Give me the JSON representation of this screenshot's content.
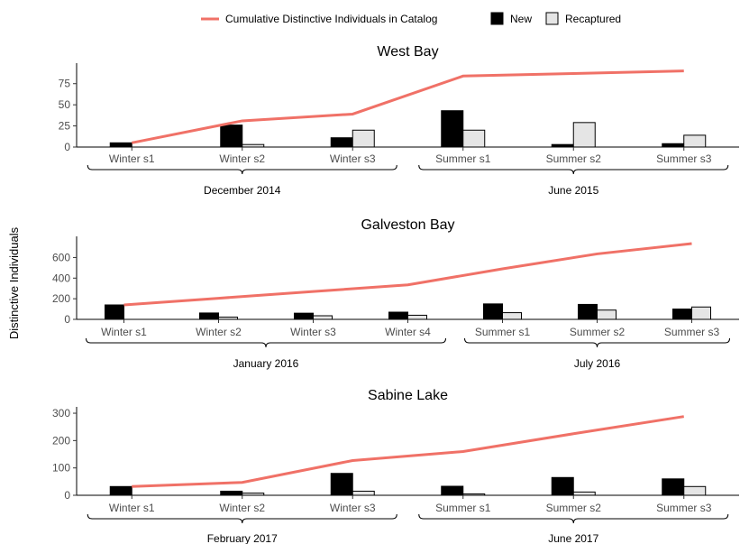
{
  "colors": {
    "cumulative": "#f07167",
    "new": "#000000",
    "recaptured": "#e5e5e5",
    "bar_stroke": "#000000",
    "axis": "#000000"
  },
  "legend": {
    "line_label": "Cumulative Distinctive Individuals in Catalog",
    "new_label": "New",
    "recaptured_label": "Recaptured",
    "placement": "top"
  },
  "y_axis_label": "Distinctive Individuals",
  "chart_data": [
    {
      "type": "bar+line",
      "title": "West Bay",
      "categories": [
        "Winter s1",
        "Winter s2",
        "Winter s3",
        "Summer s1",
        "Summer s2",
        "Summer s3"
      ],
      "groups": [
        {
          "label": "December 2014",
          "from": 0,
          "to": 2
        },
        {
          "label": "June 2015",
          "from": 3,
          "to": 5
        }
      ],
      "series": [
        {
          "name": "New",
          "kind": "bar",
          "values": [
            5,
            26,
            11,
            43,
            3,
            4
          ]
        },
        {
          "name": "Recaptured",
          "kind": "bar",
          "values": [
            0,
            3,
            20,
            20,
            29,
            14
          ]
        },
        {
          "name": "Cumulative Distinctive Individuals in Catalog",
          "kind": "line",
          "values": [
            5,
            31,
            39,
            84,
            87,
            90
          ]
        }
      ],
      "yticks": [
        0,
        25,
        50,
        75
      ],
      "ylim": [
        0,
        95
      ]
    },
    {
      "type": "bar+line",
      "title": "Galveston Bay",
      "categories": [
        "Winter s1",
        "Winter s2",
        "Winter s3",
        "Winter s4",
        "Summer s1",
        "Summer s2",
        "Summer s3"
      ],
      "groups": [
        {
          "label": "January 2016",
          "from": 0,
          "to": 3
        },
        {
          "label": "July 2016",
          "from": 4,
          "to": 6
        }
      ],
      "series": [
        {
          "name": "New",
          "kind": "bar",
          "values": [
            140,
            62,
            60,
            70,
            150,
            145,
            100
          ]
        },
        {
          "name": "Recaptured",
          "kind": "bar",
          "values": [
            0,
            22,
            35,
            40,
            65,
            90,
            120
          ]
        },
        {
          "name": "Cumulative Distinctive Individuals in Catalog",
          "kind": "line",
          "values": [
            140,
            205,
            270,
            335,
            490,
            635,
            735
          ]
        }
      ],
      "yticks": [
        0,
        200,
        400,
        600
      ],
      "ylim": [
        0,
        770
      ]
    },
    {
      "type": "bar+line",
      "title": "Sabine Lake",
      "categories": [
        "Winter s1",
        "Winter s2",
        "Winter s3",
        "Summer s1",
        "Summer s2",
        "Summer s3"
      ],
      "groups": [
        {
          "label": "February 2017",
          "from": 0,
          "to": 2
        },
        {
          "label": "June 2017",
          "from": 3,
          "to": 5
        }
      ],
      "series": [
        {
          "name": "New",
          "kind": "bar",
          "values": [
            32,
            15,
            80,
            33,
            65,
            60
          ]
        },
        {
          "name": "Recaptured",
          "kind": "bar",
          "values": [
            0,
            8,
            15,
            5,
            12,
            32
          ]
        },
        {
          "name": "Cumulative Distinctive Individuals in Catalog",
          "kind": "line",
          "values": [
            32,
            47,
            127,
            160,
            225,
            288
          ]
        }
      ],
      "yticks": [
        0,
        100,
        200,
        300
      ],
      "ylim": [
        0,
        310
      ]
    }
  ]
}
